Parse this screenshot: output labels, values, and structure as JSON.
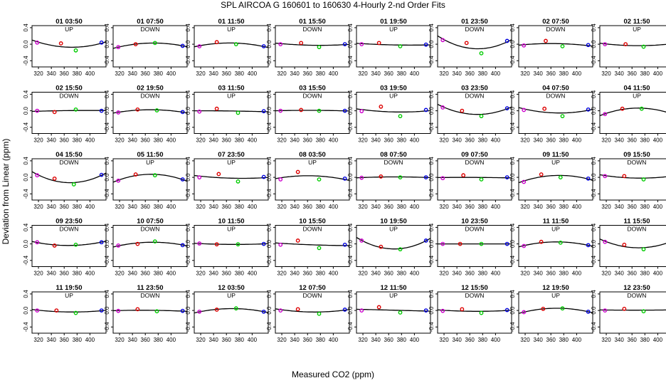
{
  "chart_data": {
    "type": "scatter",
    "title": "SPL   AIRCOA G   160601 to 160630   4-Hourly 2-nd Order Fits",
    "xlabel": "Measured CO2 (ppm)",
    "ylabel": "Deviation from Linear (ppm)",
    "xlim": [
      310,
      425
    ],
    "ylim": [
      -0.55,
      0.45
    ],
    "xticks": [
      320,
      360,
      400
    ],
    "xticks_minor": [
      340,
      380
    ],
    "yticks": [
      0.2,
      -0.2
    ],
    "yticks_major": [
      0.4,
      0.0,
      -0.4
    ],
    "colors": {
      "std1": "#cc00cc",
      "std2": "#dd0000",
      "std3": "#00cc00",
      "std4": "#0000dd",
      "curve": "#000000"
    },
    "panels": [
      {
        "label": "01 03:50",
        "dir": "UP",
        "points": [
          [
            318,
            0.04
          ],
          [
            355,
            0.02
          ],
          [
            378,
            -0.15
          ],
          [
            418,
            0.04
          ]
        ]
      },
      {
        "label": "01 07:50",
        "dir": "DOWN",
        "points": [
          [
            318,
            -0.07
          ],
          [
            345,
            0.0
          ],
          [
            375,
            0.03
          ],
          [
            418,
            -0.04
          ]
        ]
      },
      {
        "label": "01 11:50",
        "dir": "UP",
        "points": [
          [
            318,
            -0.05
          ],
          [
            345,
            0.05
          ],
          [
            375,
            0.0
          ],
          [
            418,
            -0.05
          ]
        ]
      },
      {
        "label": "01 15:50",
        "dir": "DOWN",
        "points": [
          [
            318,
            0.0
          ],
          [
            350,
            0.03
          ],
          [
            378,
            -0.07
          ],
          [
            418,
            0.0
          ]
        ]
      },
      {
        "label": "01 19:50",
        "dir": "UP",
        "points": [
          [
            318,
            0.0
          ],
          [
            345,
            0.03
          ],
          [
            378,
            -0.05
          ],
          [
            418,
            -0.01
          ]
        ]
      },
      {
        "label": "01 23:50",
        "dir": "DOWN",
        "points": [
          [
            318,
            0.1
          ],
          [
            355,
            0.03
          ],
          [
            378,
            -0.22
          ],
          [
            418,
            0.08
          ]
        ]
      },
      {
        "label": "02 07:50",
        "dir": "DOWN",
        "points": [
          [
            318,
            -0.03
          ],
          [
            352,
            0.08
          ],
          [
            378,
            -0.05
          ],
          [
            418,
            -0.02
          ]
        ]
      },
      {
        "label": "02 11:50",
        "dir": "UP",
        "points": [
          [
            318,
            0.0
          ],
          [
            350,
            0.0
          ],
          [
            378,
            -0.06
          ],
          [
            418,
            0.01
          ]
        ]
      },
      {
        "label": "02 15:50",
        "dir": "DOWN",
        "points": [
          [
            318,
            0.0
          ],
          [
            345,
            -0.03
          ],
          [
            378,
            0.03
          ],
          [
            418,
            0.0
          ]
        ]
      },
      {
        "label": "02 19:50",
        "dir": "DOWN",
        "points": [
          [
            318,
            -0.04
          ],
          [
            348,
            0.03
          ],
          [
            378,
            0.01
          ],
          [
            418,
            -0.03
          ]
        ]
      },
      {
        "label": "03 11:50",
        "dir": "UP",
        "points": [
          [
            318,
            -0.02
          ],
          [
            345,
            0.05
          ],
          [
            378,
            -0.05
          ],
          [
            418,
            -0.01
          ]
        ]
      },
      {
        "label": "03 15:50",
        "dir": "DOWN",
        "points": [
          [
            318,
            0.0
          ],
          [
            350,
            0.02
          ],
          [
            378,
            0.0
          ],
          [
            418,
            0.0
          ]
        ]
      },
      {
        "label": "03 19:50",
        "dir": "UP",
        "points": [
          [
            318,
            -0.01
          ],
          [
            348,
            0.1
          ],
          [
            378,
            -0.13
          ],
          [
            418,
            0.02
          ]
        ]
      },
      {
        "label": "03 23:50",
        "dir": "DOWN",
        "points": [
          [
            318,
            0.08
          ],
          [
            348,
            0.0
          ],
          [
            378,
            -0.13
          ],
          [
            418,
            0.06
          ]
        ]
      },
      {
        "label": "04 07:50",
        "dir": "DOWN",
        "points": [
          [
            318,
            0.02
          ],
          [
            350,
            0.05
          ],
          [
            378,
            -0.13
          ],
          [
            418,
            0.03
          ]
        ]
      },
      {
        "label": "04 11:50",
        "dir": "UP",
        "points": [
          [
            318,
            -0.08
          ],
          [
            345,
            0.05
          ],
          [
            375,
            0.05
          ],
          [
            418,
            -0.05
          ]
        ]
      },
      {
        "label": "04 15:50",
        "dir": "DOWN",
        "points": [
          [
            318,
            0.05
          ],
          [
            345,
            -0.03
          ],
          [
            375,
            -0.17
          ],
          [
            418,
            0.06
          ]
        ]
      },
      {
        "label": "05 11:50",
        "dir": "UP",
        "points": [
          [
            318,
            -0.08
          ],
          [
            345,
            0.07
          ],
          [
            375,
            0.05
          ],
          [
            418,
            -0.05
          ]
        ]
      },
      {
        "label": "07 23:50",
        "dir": "UP",
        "points": [
          [
            318,
            0.0
          ],
          [
            348,
            0.08
          ],
          [
            378,
            -0.1
          ],
          [
            418,
            0.01
          ]
        ]
      },
      {
        "label": "08 03:50",
        "dir": "UP",
        "points": [
          [
            318,
            -0.05
          ],
          [
            345,
            0.13
          ],
          [
            378,
            -0.05
          ],
          [
            418,
            -0.03
          ]
        ]
      },
      {
        "label": "08 07:50",
        "dir": "DOWN",
        "points": [
          [
            318,
            -0.01
          ],
          [
            348,
            0.02
          ],
          [
            378,
            0.0
          ],
          [
            418,
            0.0
          ]
        ]
      },
      {
        "label": "09 07:50",
        "dir": "DOWN",
        "points": [
          [
            318,
            -0.02
          ],
          [
            350,
            0.05
          ],
          [
            378,
            -0.05
          ],
          [
            418,
            0.0
          ]
        ]
      },
      {
        "label": "09 11:50",
        "dir": "UP",
        "points": [
          [
            318,
            -0.11
          ],
          [
            345,
            0.07
          ],
          [
            375,
            0.0
          ],
          [
            418,
            -0.03
          ]
        ]
      },
      {
        "label": "09 15:50",
        "dir": "DOWN",
        "points": [
          [
            318,
            0.03
          ],
          [
            348,
            0.03
          ],
          [
            378,
            -0.05
          ],
          [
            418,
            0.03
          ]
        ]
      },
      {
        "label": "09 23:50",
        "dir": "DOWN",
        "points": [
          [
            318,
            0.04
          ],
          [
            345,
            -0.04
          ],
          [
            378,
            -0.02
          ],
          [
            418,
            0.04
          ]
        ]
      },
      {
        "label": "10 07:50",
        "dir": "DOWN",
        "points": [
          [
            318,
            -0.04
          ],
          [
            348,
            0.0
          ],
          [
            375,
            0.06
          ],
          [
            418,
            -0.03
          ]
        ]
      },
      {
        "label": "10 11:50",
        "dir": "UP",
        "points": [
          [
            318,
            0.01
          ],
          [
            345,
            -0.01
          ],
          [
            378,
            -0.01
          ],
          [
            418,
            0.0
          ]
        ]
      },
      {
        "label": "10 15:50",
        "dir": "DOWN",
        "points": [
          [
            318,
            -0.02
          ],
          [
            345,
            0.08
          ],
          [
            378,
            -0.1
          ],
          [
            418,
            -0.02
          ]
        ]
      },
      {
        "label": "10 19:50",
        "dir": "UP",
        "points": [
          [
            318,
            0.08
          ],
          [
            348,
            -0.07
          ],
          [
            378,
            -0.13
          ],
          [
            418,
            0.08
          ]
        ]
      },
      {
        "label": "10 23:50",
        "dir": "DOWN",
        "points": [
          [
            318,
            0.0
          ],
          [
            345,
            0.0
          ],
          [
            378,
            0.0
          ],
          [
            418,
            0.0
          ]
        ]
      },
      {
        "label": "11 11:50",
        "dir": "UP",
        "points": [
          [
            318,
            -0.05
          ],
          [
            345,
            0.05
          ],
          [
            375,
            0.03
          ],
          [
            418,
            -0.03
          ]
        ]
      },
      {
        "label": "11 15:50",
        "dir": "DOWN",
        "points": [
          [
            318,
            0.05
          ],
          [
            348,
            -0.02
          ],
          [
            378,
            -0.13
          ],
          [
            418,
            0.05
          ]
        ]
      },
      {
        "label": "11 19:50",
        "dir": "UP",
        "points": [
          [
            318,
            0.0
          ],
          [
            348,
            0.0
          ],
          [
            378,
            -0.06
          ],
          [
            418,
            0.0
          ]
        ]
      },
      {
        "label": "11 23:50",
        "dir": "DOWN",
        "points": [
          [
            318,
            -0.01
          ],
          [
            348,
            0.03
          ],
          [
            378,
            -0.02
          ],
          [
            418,
            -0.01
          ]
        ]
      },
      {
        "label": "12 03:50",
        "dir": "UP",
        "points": [
          [
            318,
            -0.03
          ],
          [
            345,
            0.02
          ],
          [
            375,
            0.05
          ],
          [
            418,
            -0.03
          ]
        ]
      },
      {
        "label": "12 07:50",
        "dir": "DOWN",
        "points": [
          [
            318,
            0.0
          ],
          [
            345,
            0.03
          ],
          [
            378,
            -0.08
          ],
          [
            418,
            0.02
          ]
        ]
      },
      {
        "label": "12 11:50",
        "dir": "UP",
        "points": [
          [
            318,
            0.0
          ],
          [
            345,
            0.08
          ],
          [
            378,
            -0.05
          ],
          [
            418,
            0.0
          ]
        ]
      },
      {
        "label": "12 15:50",
        "dir": "DOWN",
        "points": [
          [
            318,
            -0.01
          ],
          [
            348,
            0.03
          ],
          [
            378,
            -0.06
          ],
          [
            418,
            0.01
          ]
        ]
      },
      {
        "label": "12 19:50",
        "dir": "UP",
        "points": [
          [
            318,
            -0.04
          ],
          [
            348,
            0.04
          ],
          [
            378,
            0.05
          ],
          [
            418,
            -0.03
          ]
        ]
      },
      {
        "label": "12 23:50",
        "dir": "DOWN",
        "points": [
          [
            318,
            0.0
          ],
          [
            348,
            0.04
          ],
          [
            378,
            -0.02
          ],
          [
            418,
            0.02
          ]
        ]
      }
    ]
  }
}
